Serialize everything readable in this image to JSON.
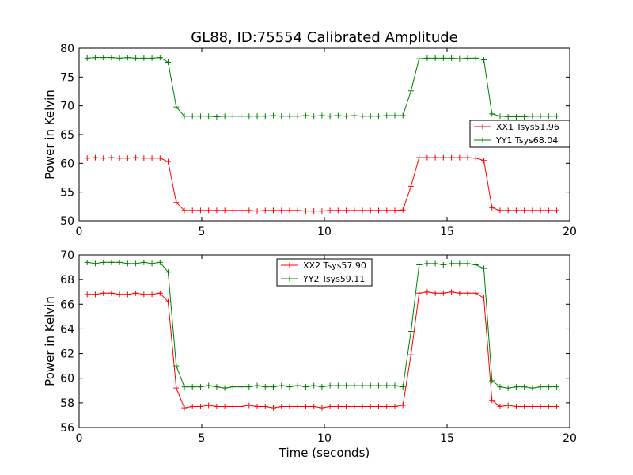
{
  "chart_data": [
    {
      "type": "line",
      "title": "GL88, ID:75554 Calibrated Amplitude",
      "xlabel": "",
      "ylabel": "Power in Kelvin",
      "xlim": [
        0,
        20
      ],
      "ylim": [
        50,
        80
      ],
      "xticks": [
        "0",
        "5",
        "10",
        "15",
        "20"
      ],
      "yticks": [
        "50",
        "55",
        "60",
        "65",
        "70",
        "75",
        "80"
      ],
      "grid": false,
      "legend_position": "center-right",
      "x": [
        0.33,
        0.66,
        0.99,
        1.32,
        1.65,
        1.98,
        2.31,
        2.64,
        2.97,
        3.3,
        3.63,
        3.96,
        4.29,
        4.62,
        4.95,
        5.28,
        5.61,
        5.94,
        6.27,
        6.6,
        6.93,
        7.26,
        7.59,
        7.92,
        8.25,
        8.58,
        8.91,
        9.24,
        9.57,
        9.9,
        10.23,
        10.56,
        10.89,
        11.22,
        11.55,
        11.88,
        12.21,
        12.54,
        12.87,
        13.2,
        13.53,
        13.86,
        14.19,
        14.52,
        14.85,
        15.18,
        15.51,
        15.84,
        16.17,
        16.5,
        16.83,
        17.16,
        17.49,
        17.82,
        18.15,
        18.48,
        18.81,
        19.14,
        19.47
      ],
      "series": [
        {
          "name": "XX1 Tsys51.96",
          "color": "#ff0000",
          "values": [
            60.9,
            61.0,
            60.9,
            61.0,
            60.9,
            60.9,
            61.0,
            60.9,
            60.9,
            60.9,
            60.3,
            53.2,
            51.8,
            51.8,
            51.8,
            51.8,
            51.8,
            51.8,
            51.8,
            51.8,
            51.8,
            51.7,
            51.8,
            51.8,
            51.8,
            51.8,
            51.8,
            51.7,
            51.7,
            51.7,
            51.8,
            51.8,
            51.8,
            51.8,
            51.8,
            51.8,
            51.8,
            51.8,
            51.8,
            51.9,
            56.0,
            61.0,
            61.0,
            61.0,
            61.0,
            61.0,
            61.0,
            61.0,
            60.9,
            60.5,
            52.3,
            51.8,
            51.8,
            51.8,
            51.8,
            51.8,
            51.8,
            51.8,
            51.8
          ]
        },
        {
          "name": "YY1 Tsys68.04",
          "color": "#008000",
          "values": [
            78.3,
            78.4,
            78.4,
            78.4,
            78.3,
            78.4,
            78.3,
            78.3,
            78.3,
            78.4,
            77.6,
            69.8,
            68.2,
            68.2,
            68.2,
            68.2,
            68.1,
            68.2,
            68.2,
            68.2,
            68.2,
            68.2,
            68.2,
            68.3,
            68.2,
            68.2,
            68.2,
            68.3,
            68.2,
            68.3,
            68.2,
            68.3,
            68.2,
            68.3,
            68.2,
            68.2,
            68.2,
            68.3,
            68.3,
            68.3,
            72.6,
            78.2,
            78.3,
            78.3,
            78.3,
            78.3,
            78.2,
            78.3,
            78.3,
            78.0,
            68.6,
            68.2,
            68.1,
            68.1,
            68.1,
            68.2,
            68.2,
            68.2,
            68.2
          ]
        }
      ]
    },
    {
      "type": "line",
      "title": "",
      "xlabel": "Time (seconds)",
      "ylabel": "Power in Kelvin",
      "xlim": [
        0,
        20
      ],
      "ylim": [
        56,
        70
      ],
      "xticks": [
        "0",
        "5",
        "10",
        "15",
        "20"
      ],
      "yticks": [
        "56",
        "58",
        "60",
        "62",
        "64",
        "66",
        "68",
        "70"
      ],
      "grid": false,
      "legend_position": "top-center",
      "x": [
        0.33,
        0.66,
        0.99,
        1.32,
        1.65,
        1.98,
        2.31,
        2.64,
        2.97,
        3.3,
        3.63,
        3.96,
        4.29,
        4.62,
        4.95,
        5.28,
        5.61,
        5.94,
        6.27,
        6.6,
        6.93,
        7.26,
        7.59,
        7.92,
        8.25,
        8.58,
        8.91,
        9.24,
        9.57,
        9.9,
        10.23,
        10.56,
        10.89,
        11.22,
        11.55,
        11.88,
        12.21,
        12.54,
        12.87,
        13.2,
        13.53,
        13.86,
        14.19,
        14.52,
        14.85,
        15.18,
        15.51,
        15.84,
        16.17,
        16.5,
        16.83,
        17.16,
        17.49,
        17.82,
        18.15,
        18.48,
        18.81,
        19.14,
        19.47
      ],
      "series": [
        {
          "name": "XX2 Tsys57.90",
          "color": "#ff0000",
          "values": [
            66.8,
            66.8,
            66.9,
            66.9,
            66.8,
            66.8,
            66.9,
            66.8,
            66.8,
            66.9,
            66.2,
            59.2,
            57.6,
            57.7,
            57.7,
            57.8,
            57.7,
            57.7,
            57.7,
            57.7,
            57.8,
            57.7,
            57.7,
            57.6,
            57.7,
            57.7,
            57.7,
            57.7,
            57.7,
            57.6,
            57.7,
            57.7,
            57.7,
            57.7,
            57.7,
            57.7,
            57.7,
            57.7,
            57.7,
            57.8,
            61.9,
            66.9,
            67.0,
            66.9,
            66.9,
            67.0,
            66.9,
            66.9,
            66.9,
            66.5,
            58.2,
            57.7,
            57.8,
            57.7,
            57.7,
            57.7,
            57.7,
            57.7,
            57.7
          ]
        },
        {
          "name": "YY2 Tsys59.11",
          "color": "#008000",
          "values": [
            69.4,
            69.3,
            69.4,
            69.4,
            69.4,
            69.3,
            69.3,
            69.4,
            69.3,
            69.4,
            68.6,
            61.0,
            59.3,
            59.3,
            59.3,
            59.4,
            59.3,
            59.2,
            59.3,
            59.3,
            59.3,
            59.4,
            59.3,
            59.3,
            59.4,
            59.3,
            59.4,
            59.3,
            59.4,
            59.3,
            59.4,
            59.4,
            59.4,
            59.4,
            59.4,
            59.4,
            59.4,
            59.4,
            59.4,
            59.3,
            63.8,
            69.2,
            69.3,
            69.3,
            69.2,
            69.3,
            69.3,
            69.3,
            69.2,
            68.9,
            59.8,
            59.3,
            59.2,
            59.3,
            59.3,
            59.2,
            59.3,
            59.3,
            59.3
          ]
        }
      ]
    }
  ]
}
